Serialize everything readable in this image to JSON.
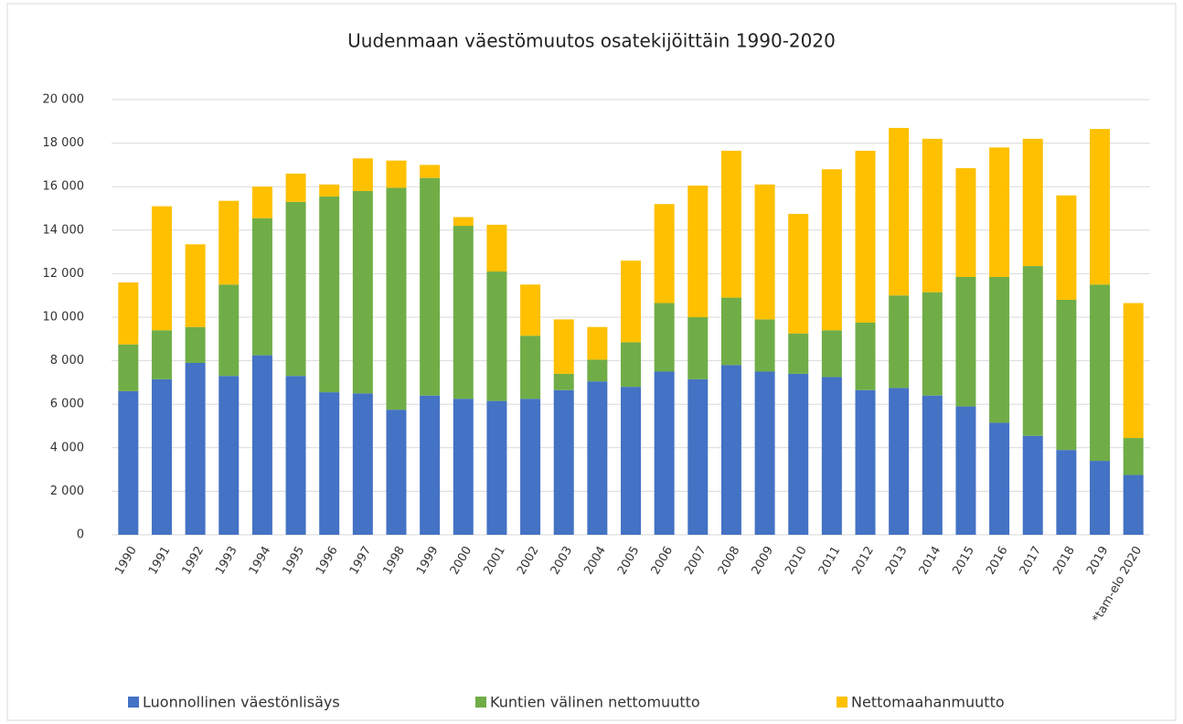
{
  "chart_data": {
    "type": "stacked_bar",
    "title": "Uudenmaan väestömuutos osatekijöittäin 1990-2020",
    "categories": [
      "1990",
      "1991",
      "1992",
      "1993",
      "1994",
      "1995",
      "1996",
      "1997",
      "1998",
      "1999",
      "2000",
      "2001",
      "2002",
      "2003",
      "2004",
      "2005",
      "2006",
      "2007",
      "2008",
      "2009",
      "2010",
      "2011",
      "2012",
      "2013",
      "2014",
      "2015",
      "2016",
      "2017",
      "2018",
      "2019",
      "*tam-elo 2020"
    ],
    "series": [
      {
        "name": "Luonnollinen väestönlisäys",
        "color": "#4472c4",
        "values": [
          6600,
          7150,
          7900,
          7300,
          8250,
          7300,
          6550,
          6500,
          5750,
          6400,
          6250,
          6150,
          6250,
          6650,
          7050,
          6800,
          7500,
          7150,
          7800,
          7500,
          7400,
          7250,
          6650,
          6750,
          6400,
          5900,
          5150,
          4550,
          3900,
          3400,
          2750
        ]
      },
      {
        "name": "Kuntien välinen nettomuutto",
        "color": "#70ad47",
        "values": [
          2150,
          2250,
          1650,
          4200,
          6300,
          8000,
          9000,
          9300,
          10200,
          10000,
          7950,
          5950,
          2900,
          750,
          1000,
          2050,
          3150,
          2850,
          3100,
          2400,
          1850,
          2150,
          3100,
          4250,
          4750,
          5950,
          6700,
          7800,
          6900,
          8100,
          1700
        ]
      },
      {
        "name": "Nettomaahanmuutto",
        "color": "#ffc000",
        "values": [
          2850,
          5700,
          3800,
          3850,
          1450,
          1300,
          550,
          1500,
          1250,
          600,
          400,
          2150,
          2350,
          2500,
          1500,
          3750,
          4550,
          6050,
          6750,
          6200,
          5500,
          7400,
          7900,
          7700,
          7050,
          5000,
          5950,
          5850,
          4800,
          7150,
          6200
        ]
      }
    ],
    "ylim": [
      0,
      20000
    ],
    "yticks": [
      0,
      {
        "value": 2000,
        "label": "2 000"
      },
      {
        "value": 4000,
        "label": "4 000"
      },
      {
        "value": 6000,
        "label": "6 000"
      },
      {
        "value": 8000,
        "label": "8 000"
      },
      {
        "value": 10000,
        "label": "10 000"
      },
      {
        "value": 12000,
        "label": "12 000"
      },
      {
        "value": 14000,
        "label": "14 000"
      },
      {
        "value": 16000,
        "label": "16 000"
      },
      {
        "value": 18000,
        "label": "18 000"
      },
      {
        "value": 20000,
        "label": "20 000"
      }
    ],
    "grid": true,
    "legend": "bottom"
  }
}
